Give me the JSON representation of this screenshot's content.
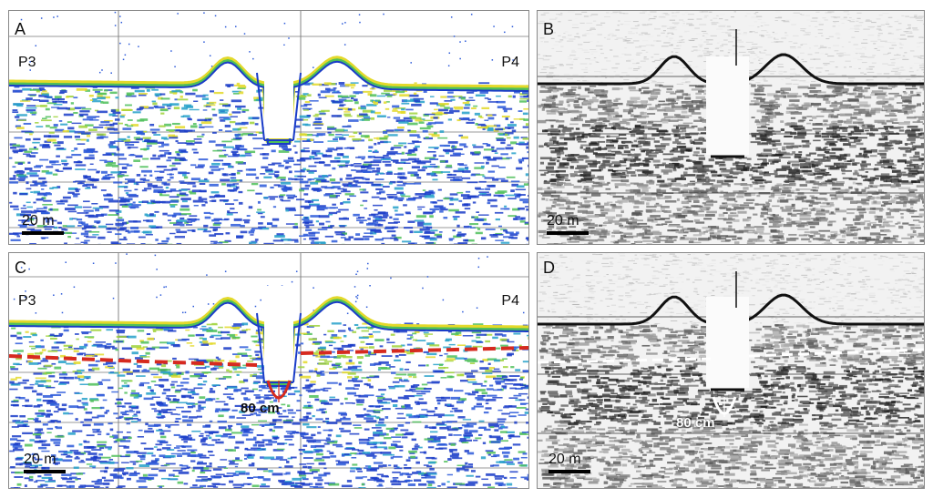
{
  "panels": [
    {
      "letter": "A",
      "profile_left": "P3",
      "profile_right": "P4",
      "scale": "20 m",
      "style": "color"
    },
    {
      "letter": "B",
      "scale": "20 m",
      "style": "grayscale"
    },
    {
      "letter": "C",
      "profile_left": "P3",
      "profile_right": "P4",
      "scale": "20 m",
      "style": "color",
      "annotation": "80 cm",
      "annotation_color": "#d62a1f",
      "reflector_color": "#d62a1f"
    },
    {
      "letter": "D",
      "scale": "20 m",
      "style": "grayscale",
      "annotation": "80 cm",
      "annotation_color": "#ffffff",
      "reflector_color": "#ffffff"
    }
  ]
}
